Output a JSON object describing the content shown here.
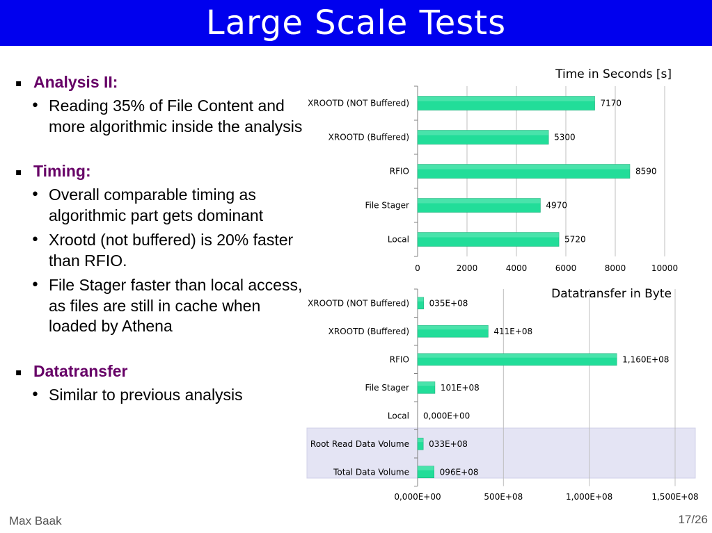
{
  "slide": {
    "title": "Large Scale Tests",
    "author": "Max Baak",
    "page": "17/26"
  },
  "colors": {
    "title_bar": "#0000ee",
    "heading": "#660066",
    "bar": "#22dd99",
    "highlight_band": "#e4e4f4"
  },
  "bullets": [
    {
      "heading": "Analysis II:",
      "items": [
        "Reading 35% of File Content and more algorithmic inside the analysis"
      ]
    },
    {
      "heading": "Timing:",
      "items": [
        "Overall comparable timing as algorithmic part gets dominant",
        "Xrootd (not buffered) is 20% faster than RFIO.",
        "File Stager faster than local access, as files are still in cache when loaded by Athena"
      ]
    },
    {
      "heading": "Datatransfer",
      "items": [
        "Similar to previous analysis"
      ]
    }
  ],
  "chart_data": [
    {
      "type": "bar",
      "orientation": "horizontal",
      "title": "Time in Seconds [s]",
      "categories": [
        "XROOTD (NOT Buffered)",
        "XROOTD (Buffered)",
        "RFIO",
        "File Stager",
        "Local"
      ],
      "values": [
        7170,
        5300,
        8590,
        4970,
        5720
      ],
      "value_labels": [
        "7170",
        "5300",
        "8590",
        "4970",
        "5720"
      ],
      "xlim": [
        0,
        10000
      ],
      "xticks": [
        0,
        2000,
        4000,
        6000,
        8000,
        10000
      ],
      "xtick_labels": [
        "0",
        "2000",
        "4000",
        "6000",
        "8000",
        "10000"
      ],
      "grid": true,
      "legend": "none"
    },
    {
      "type": "bar",
      "orientation": "horizontal",
      "title": "Datatransfer in Byte",
      "categories": [
        "XROOTD (NOT Buffered)",
        "XROOTD (Buffered)",
        "RFIO",
        "File Stager",
        "Local",
        "Root Read Data Volume",
        "Total Data Volume"
      ],
      "values": [
        35000000,
        411000000,
        1160000000,
        101000000,
        0,
        33000000,
        96000000
      ],
      "value_labels": [
        "035E+08",
        "411E+08",
        "1,160E+08",
        "101E+08",
        "0,000E+00",
        "033E+08",
        "096E+08"
      ],
      "highlighted_categories": [
        "Root Read Data Volume",
        "Total Data Volume"
      ],
      "xlim": [
        0,
        1500000000
      ],
      "xticks": [
        0,
        500000000,
        1000000000,
        1500000000
      ],
      "xtick_labels": [
        "0,000E+00",
        "500E+08",
        "1,000E+08",
        "1,500E+08"
      ],
      "grid": true,
      "legend": "none"
    }
  ]
}
